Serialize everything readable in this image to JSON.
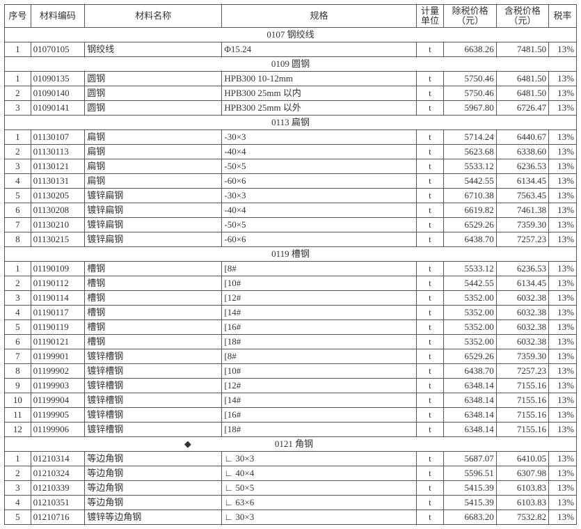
{
  "header": {
    "seq": "序号",
    "code": "材料编码",
    "name": "材料名称",
    "spec": "规格",
    "unit": "计量\n单位",
    "priceNet": "除税价格\n（元）",
    "priceTax": "含税价格\n（元）",
    "rate": "税率"
  },
  "sections": [
    {
      "title": "0107 钢绞线",
      "rows": [
        {
          "seq": "1",
          "code": "01070105",
          "name": "钢绞线",
          "spec": "Φ15.24",
          "unit": "t",
          "pn": "6638.26",
          "pt": "7481.50",
          "rate": "13%"
        }
      ]
    },
    {
      "title": "0109 圆钢",
      "rows": [
        {
          "seq": "1",
          "code": "01090135",
          "name": "圆钢",
          "spec": "HPB300  10-12mm",
          "unit": "t",
          "pn": "5750.46",
          "pt": "6481.50",
          "rate": "13%"
        },
        {
          "seq": "2",
          "code": "01090140",
          "name": "圆钢",
          "spec": "HPB300  25mm 以内",
          "unit": "t",
          "pn": "5750.46",
          "pt": "6481.50",
          "rate": "13%"
        },
        {
          "seq": "3",
          "code": "01090141",
          "name": "圆钢",
          "spec": "HPB300  25mm 以外",
          "unit": "t",
          "pn": "5967.80",
          "pt": "6726.47",
          "rate": "13%"
        }
      ]
    },
    {
      "title": "0113 扁钢",
      "rows": [
        {
          "seq": "1",
          "code": "01130107",
          "name": "扁钢",
          "spec": "-30×3",
          "unit": "t",
          "pn": "5714.24",
          "pt": "6440.67",
          "rate": "13%"
        },
        {
          "seq": "2",
          "code": "01130113",
          "name": "扁钢",
          "spec": "-40×4",
          "unit": "t",
          "pn": "5623.68",
          "pt": "6338.60",
          "rate": "13%"
        },
        {
          "seq": "3",
          "code": "01130121",
          "name": "扁钢",
          "spec": "-50×5",
          "unit": "t",
          "pn": "5533.12",
          "pt": "6236.53",
          "rate": "13%"
        },
        {
          "seq": "4",
          "code": "01130131",
          "name": "扁钢",
          "spec": "-60×6",
          "unit": "t",
          "pn": "5442.55",
          "pt": "6134.45",
          "rate": "13%"
        },
        {
          "seq": "5",
          "code": "01130205",
          "name": "镀锌扁钢",
          "spec": "-30×3",
          "unit": "t",
          "pn": "6710.38",
          "pt": "7563.45",
          "rate": "13%"
        },
        {
          "seq": "6",
          "code": "01130208",
          "name": "镀锌扁钢",
          "spec": "-40×4",
          "unit": "t",
          "pn": "6619.82",
          "pt": "7461.38",
          "rate": "13%"
        },
        {
          "seq": "7",
          "code": "01130210",
          "name": "镀锌扁钢",
          "spec": "-50×5",
          "unit": "t",
          "pn": "6529.26",
          "pt": "7359.30",
          "rate": "13%"
        },
        {
          "seq": "8",
          "code": "01130215",
          "name": "镀锌扁钢",
          "spec": "-60×6",
          "unit": "t",
          "pn": "6438.70",
          "pt": "7257.23",
          "rate": "13%"
        }
      ]
    },
    {
      "title": "0119 槽钢",
      "rows": [
        {
          "seq": "1",
          "code": "01190109",
          "name": "槽钢",
          "spec": "[8#",
          "unit": "t",
          "pn": "5533.12",
          "pt": "6236.53",
          "rate": "13%"
        },
        {
          "seq": "2",
          "code": "01190112",
          "name": "槽钢",
          "spec": "[10#",
          "unit": "t",
          "pn": "5442.55",
          "pt": "6134.45",
          "rate": "13%"
        },
        {
          "seq": "3",
          "code": "01190114",
          "name": "槽钢",
          "spec": "[12#",
          "unit": "t",
          "pn": "5352.00",
          "pt": "6032.38",
          "rate": "13%"
        },
        {
          "seq": "4",
          "code": "01190117",
          "name": "槽钢",
          "spec": "[14#",
          "unit": "t",
          "pn": "5352.00",
          "pt": "6032.38",
          "rate": "13%"
        },
        {
          "seq": "5",
          "code": "01190119",
          "name": "槽钢",
          "spec": "[16#",
          "unit": "t",
          "pn": "5352.00",
          "pt": "6032.38",
          "rate": "13%"
        },
        {
          "seq": "6",
          "code": "01190121",
          "name": "槽钢",
          "spec": "[18#",
          "unit": "t",
          "pn": "5352.00",
          "pt": "6032.38",
          "rate": "13%"
        },
        {
          "seq": "7",
          "code": "01199901",
          "name": "镀锌槽钢",
          "spec": "[8#",
          "unit": "t",
          "pn": "6529.26",
          "pt": "7359.30",
          "rate": "13%"
        },
        {
          "seq": "8",
          "code": "01199902",
          "name": "镀锌槽钢",
          "spec": "[10#",
          "unit": "t",
          "pn": "6438.70",
          "pt": "7257.23",
          "rate": "13%"
        },
        {
          "seq": "9",
          "code": "01199903",
          "name": "镀锌槽钢",
          "spec": "[12#",
          "unit": "t",
          "pn": "6348.14",
          "pt": "7155.16",
          "rate": "13%"
        },
        {
          "seq": "10",
          "code": "01199904",
          "name": "镀锌槽钢",
          "spec": "[14#",
          "unit": "t",
          "pn": "6348.14",
          "pt": "7155.16",
          "rate": "13%"
        },
        {
          "seq": "11",
          "code": "01199905",
          "name": "镀锌槽钢",
          "spec": "[16#",
          "unit": "t",
          "pn": "6348.14",
          "pt": "7155.16",
          "rate": "13%"
        },
        {
          "seq": "12",
          "code": "01199906",
          "name": "镀锌槽钢",
          "spec": "[18#",
          "unit": "t",
          "pn": "6348.14",
          "pt": "7155.16",
          "rate": "13%"
        }
      ]
    },
    {
      "title": "0121 角钢",
      "diamond": true,
      "rows": [
        {
          "seq": "1",
          "code": "01210314",
          "name": "等边角钢",
          "spec": "∟ 30×3",
          "unit": "t",
          "pn": "5687.07",
          "pt": "6410.05",
          "rate": "13%"
        },
        {
          "seq": "2",
          "code": "01210324",
          "name": "等边角钢",
          "spec": "∟ 40×4",
          "unit": "t",
          "pn": "5596.51",
          "pt": "6307.98",
          "rate": "13%"
        },
        {
          "seq": "3",
          "code": "01210339",
          "name": "等边角钢",
          "spec": "∟ 50×5",
          "unit": "t",
          "pn": "5415.39",
          "pt": "6103.83",
          "rate": "13%"
        },
        {
          "seq": "4",
          "code": "01210351",
          "name": "等边角钢",
          "spec": "∟ 63×6",
          "unit": "t",
          "pn": "5415.39",
          "pt": "6103.83",
          "rate": "13%"
        },
        {
          "seq": "5",
          "code": "01210716",
          "name": "镀锌等边角钢",
          "spec": "∟ 30×3",
          "unit": "t",
          "pn": "6683.20",
          "pt": "7532.82",
          "rate": "13%"
        }
      ]
    }
  ]
}
